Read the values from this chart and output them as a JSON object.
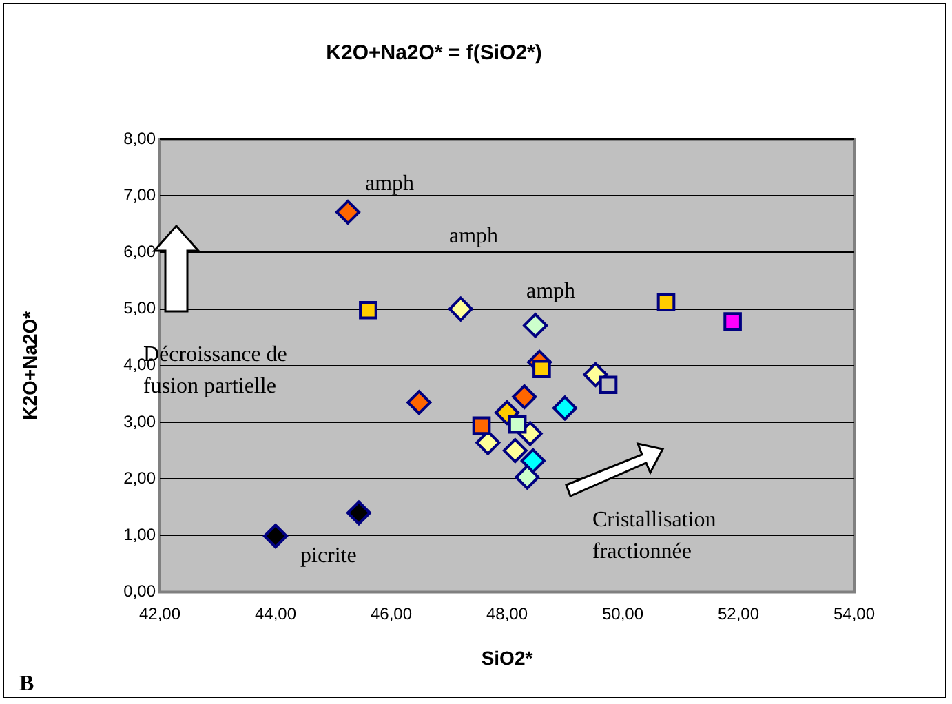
{
  "chart_data": {
    "type": "scatter",
    "title": "K2O+Na2O* = f(SiO2*)",
    "xlabel": "SiO2*",
    "ylabel": "K2O+Na2O*",
    "xlim": [
      42,
      54
    ],
    "xticks": [
      {
        "value": 42,
        "label": "42,00"
      },
      {
        "value": 44,
        "label": "44,00"
      },
      {
        "value": 46,
        "label": "46,00"
      },
      {
        "value": 48,
        "label": "48,00"
      },
      {
        "value": 50,
        "label": "50,00"
      },
      {
        "value": 52,
        "label": "52,00"
      },
      {
        "value": 54,
        "label": "54,00"
      }
    ],
    "ylim": [
      0,
      8
    ],
    "yticks": [
      {
        "value": 0,
        "label": "0,00"
      },
      {
        "value": 1,
        "label": "1,00"
      },
      {
        "value": 2,
        "label": "2,00"
      },
      {
        "value": 3,
        "label": "3,00"
      },
      {
        "value": 4,
        "label": "4,00"
      },
      {
        "value": 5,
        "label": "5,00"
      },
      {
        "value": 6,
        "label": "6,00"
      },
      {
        "value": 7,
        "label": "7,00"
      },
      {
        "value": 8,
        "label": "8,00"
      }
    ],
    "grid": "y",
    "legend": false,
    "series": [
      {
        "color": "#ff6600",
        "marker": "diamond",
        "x": [
          45.25,
          48.56,
          46.48,
          48.3
        ],
        "values": [
          6.71,
          4.06,
          3.35,
          3.45
        ]
      },
      {
        "color": "#ffcc00",
        "marker": "square",
        "x": [
          45.6,
          48.6,
          50.75
        ],
        "values": [
          4.98,
          3.94,
          5.12
        ]
      },
      {
        "color": "#ffff99",
        "marker": "diamond",
        "x": [
          47.2,
          49.53,
          47.67,
          48.4,
          48.14
        ],
        "values": [
          5.0,
          3.84,
          2.64,
          2.8,
          2.5
        ]
      },
      {
        "color": "#ccffcc",
        "marker": "diamond",
        "x": [
          48.49,
          48.35
        ],
        "values": [
          4.71,
          2.03
        ]
      },
      {
        "color": "#ff00ff",
        "marker": "square",
        "x": [
          51.9
        ],
        "values": [
          4.78
        ]
      },
      {
        "color": "#c0c0c0",
        "marker": "square",
        "x": [
          49.75
        ],
        "values": [
          3.66
        ]
      },
      {
        "color": "#00ffff",
        "marker": "diamond",
        "x": [
          49.0,
          48.45
        ],
        "values": [
          3.25,
          2.32
        ]
      },
      {
        "color": "#ff6600",
        "marker": "square",
        "x": [
          47.56
        ],
        "values": [
          2.94
        ]
      },
      {
        "color": "#ffcc00",
        "marker": "diamond",
        "x": [
          48.0
        ],
        "values": [
          3.17
        ]
      },
      {
        "color": "#ccffcc",
        "marker": "square",
        "x": [
          48.18
        ],
        "values": [
          2.96
        ]
      },
      {
        "color": "#000000",
        "marker": "diamond",
        "x": [
          45.44,
          44.0
        ],
        "values": [
          1.4,
          0.99
        ]
      }
    ],
    "annotations": [
      "amph",
      "amph",
      "amph",
      "picrite",
      "Décroissance de fusion partielle",
      "Cristallisation fractionnée",
      "B"
    ]
  }
}
